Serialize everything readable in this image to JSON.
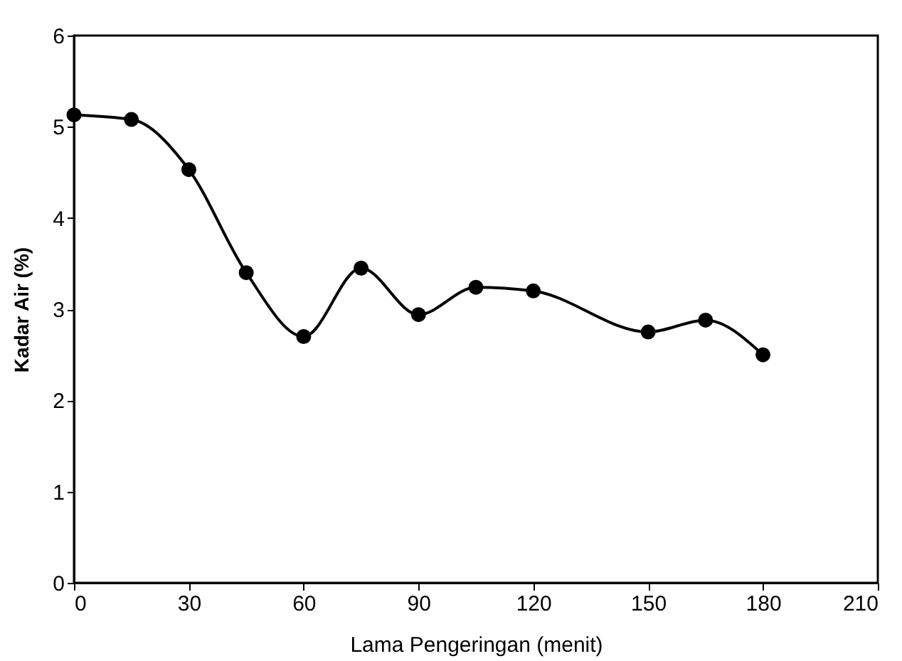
{
  "chart_data": {
    "type": "line",
    "xlabel": "Lama Pengeringan (menit)",
    "ylabel": "Kadar Air (%)",
    "x": [
      0,
      15,
      30,
      45,
      60,
      75,
      90,
      105,
      120,
      150,
      165,
      180
    ],
    "series": [
      {
        "color": "#000000",
        "values": [
          5.13,
          5.08,
          4.53,
          3.4,
          2.7,
          3.45,
          2.94,
          3.24,
          3.2,
          2.75,
          2.88,
          2.5
        ]
      }
    ],
    "xlim": [
      0,
      210
    ],
    "xticks": [
      0,
      30,
      60,
      90,
      120,
      150,
      180,
      210
    ],
    "ylim": [
      0,
      6
    ],
    "yticks": [
      0,
      1,
      2,
      3,
      4,
      5,
      6
    ],
    "grid": false,
    "marker": "circle",
    "line_style": "solid"
  }
}
